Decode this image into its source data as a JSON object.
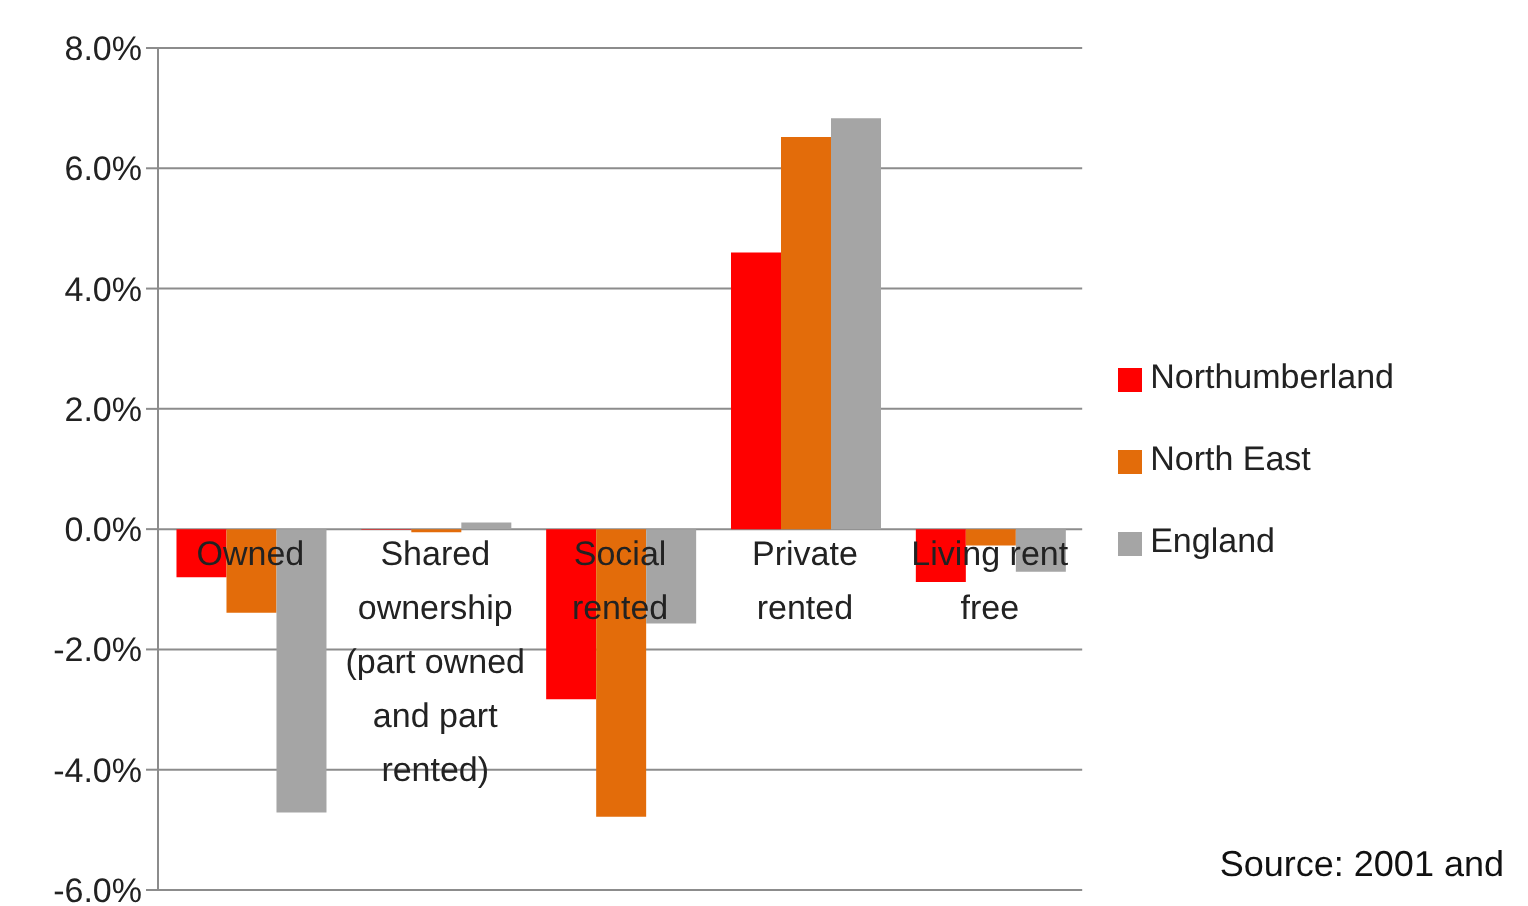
{
  "chart_data": {
    "type": "bar",
    "categories": [
      "Owned",
      "Shared ownership (part owned and part rented)",
      "Social rented",
      "Private rented",
      "Living rent free"
    ],
    "series": [
      {
        "name": "Northumberland",
        "color": "#ff0000",
        "values": [
          -0.8,
          -0.01,
          -2.83,
          4.6,
          -0.88
        ]
      },
      {
        "name": "North East",
        "color": "#e36c0a",
        "values": [
          -1.39,
          -0.05,
          -4.78,
          6.52,
          -0.27
        ]
      },
      {
        "name": "England",
        "color": "#a5a5a5",
        "values": [
          -4.71,
          0.11,
          -1.57,
          6.83,
          -0.71
        ]
      }
    ],
    "ylim": [
      -6,
      8
    ],
    "yticks": [
      {
        "value": -6,
        "label": "-6.0%"
      },
      {
        "value": -4,
        "label": "-4.0%"
      },
      {
        "value": -2,
        "label": "-2.0%"
      },
      {
        "value": 0,
        "label": "0.0%"
      },
      {
        "value": 2,
        "label": "2.0%"
      },
      {
        "value": 4,
        "label": "4.0%"
      },
      {
        "value": 6,
        "label": "6.0%"
      },
      {
        "value": 8,
        "label": "8.0%"
      }
    ],
    "grid": "y",
    "legend": "right",
    "annotations": [
      "Source: 2001 and"
    ]
  }
}
